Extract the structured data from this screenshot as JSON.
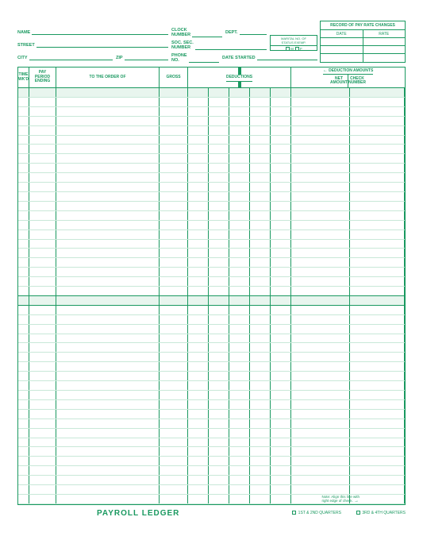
{
  "title": "PAYROLL LEDGER",
  "record_box": {
    "title": "RECORD OF PAY RATE CHANGES",
    "col1": "DATE",
    "col2": "RATE"
  },
  "fields": {
    "name": "NAME",
    "street": "STREET",
    "city": "CITY",
    "zip": "ZIP",
    "clock_number": "CLOCK\nNUMBER",
    "dept": "DEPT.",
    "soc_sec": "SOC. SEC.\nNUMBER",
    "phone": "PHONE\nNO.",
    "date_started": "DATE STARTED",
    "marital": "MARITAL NO. OF",
    "exempt": "STATUS EXEMP.",
    "m": "M",
    "f": "F"
  },
  "columns": {
    "time_wkd": "TIME\nWK'D",
    "pay_period": "PAY\nPERIOD\nENDING",
    "to_order": "TO THE ORDER OF",
    "gross": "GROSS",
    "deductions": "DEDUCTIONS",
    "deduction_amounts": "DEDUCTION AMOUNTS",
    "net_amount": "NET\nAMOUNT",
    "check_number": "CHECK\nNUMBER",
    "arrow": "←"
  },
  "footer": {
    "q12": "1ST & 2ND QUARTERS",
    "q34": "3RD & 4TH QUARTERS",
    "note1": "Note: Align this line with",
    "note2": "right edge of check."
  },
  "layout": {
    "total_rows": 44,
    "shaded_rows": [
      0,
      22
    ],
    "heavy_rows": [
      21,
      22
    ]
  }
}
